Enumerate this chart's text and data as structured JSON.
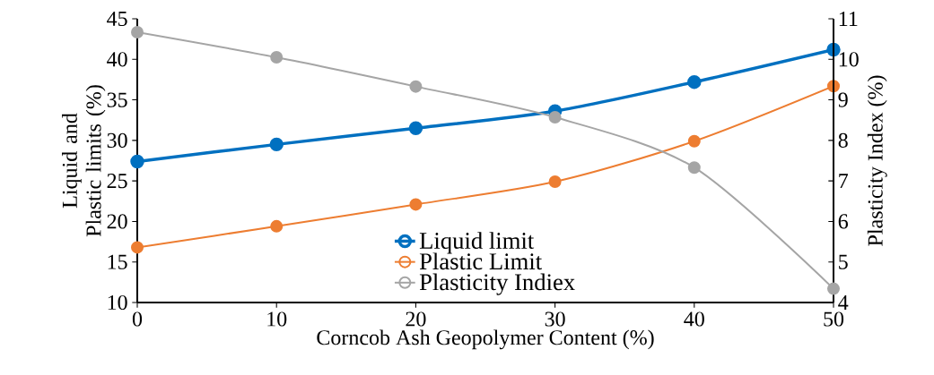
{
  "chart_data": {
    "type": "line",
    "xlabel": "Corncob Ash Geopolymer Content (%)",
    "ylabel": "Liquid and Plastic limits (%)",
    "y2label": "Plasticity Index (%)",
    "x": [
      0,
      10,
      20,
      30,
      40,
      50
    ],
    "xlim": [
      0,
      50
    ],
    "xticks": [
      0,
      10,
      20,
      30,
      40,
      50
    ],
    "ylim": [
      10,
      45
    ],
    "yticks": [
      10,
      15,
      20,
      25,
      30,
      35,
      40,
      45
    ],
    "y2lim": [
      4,
      11
    ],
    "y2ticks": [
      4,
      5,
      6,
      7,
      8,
      9,
      10,
      11
    ],
    "grid": false,
    "legend": "bottom",
    "marker": "circle",
    "line_style": "solid",
    "series": [
      {
        "name": "Liquid limit",
        "color": "#0070c0",
        "values": [
          27.4,
          29.5,
          31.5,
          33.6,
          37.2,
          41.2
        ]
      },
      {
        "name": "Plastic Limit",
        "color": "#ed7d31",
        "values": [
          16.8,
          19.4,
          22.1,
          24.9,
          29.9,
          36.7
        ]
      },
      {
        "name": "Plasticity Indiex",
        "color": "#a5a5a5",
        "axis": "y2",
        "values": [
          10.67,
          10.05,
          9.33,
          8.57,
          7.33,
          4.34
        ]
      }
    ]
  }
}
